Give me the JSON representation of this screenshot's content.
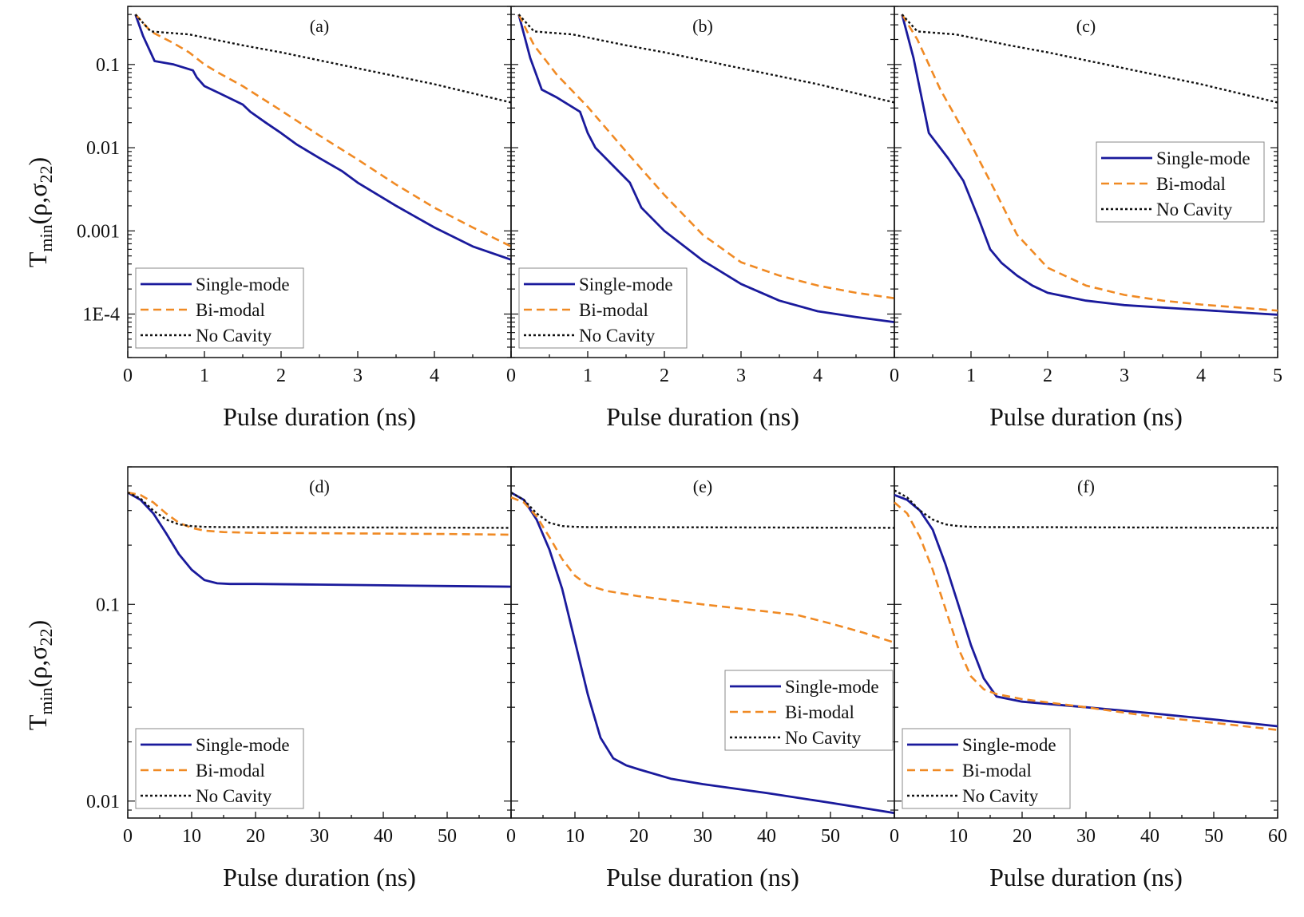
{
  "figure": {
    "ylabel_main": "T",
    "ylabel_sub": "min",
    "ylabel_args": "(ρ,σ",
    "ylabel_args_sub": "22",
    "ylabel_close": ")"
  },
  "chart_data": [
    {
      "type": "line",
      "panel": "(a)",
      "xlabel": "Pulse duration (ns)",
      "xlim": [
        0,
        5
      ],
      "ylim": [
        3e-05,
        0.5
      ],
      "yscale": "log",
      "xticks": [
        0,
        1,
        2,
        3,
        4
      ],
      "xtick_labels": [
        "0",
        "1",
        "2",
        "3",
        "4"
      ],
      "yticks": [
        0.1,
        0.01,
        0.001,
        0.0001
      ],
      "ytick_labels": [
        "0.1",
        "0.01",
        "0.001",
        "1E-4"
      ],
      "legend": [
        "Single-mode",
        "Bi-modal",
        "No Cavity"
      ],
      "legend_position": "bottom-left",
      "series": [
        {
          "name": "Single-mode",
          "color": "#1a1a9c",
          "x": [
            0.1,
            0.2,
            0.35,
            0.6,
            0.85,
            0.9,
            1.0,
            1.2,
            1.5,
            1.6,
            1.8,
            2.0,
            2.2,
            2.5,
            2.8,
            3.0,
            3.5,
            4.0,
            4.5,
            5.0
          ],
          "y": [
            0.4,
            0.22,
            0.11,
            0.1,
            0.085,
            0.07,
            0.055,
            0.045,
            0.033,
            0.027,
            0.02,
            0.015,
            0.011,
            0.0075,
            0.0052,
            0.0038,
            0.002,
            0.0011,
            0.00065,
            0.00045
          ]
        },
        {
          "name": "Bi-modal",
          "color": "#f08a24",
          "x": [
            0.1,
            0.3,
            0.6,
            0.8,
            1.0,
            1.2,
            1.5,
            2.0,
            2.5,
            3.0,
            3.5,
            4.0,
            4.5,
            5.0
          ],
          "y": [
            0.4,
            0.25,
            0.18,
            0.14,
            0.1,
            0.078,
            0.055,
            0.028,
            0.014,
            0.0072,
            0.0036,
            0.0019,
            0.0011,
            0.00065
          ]
        },
        {
          "name": "No Cavity",
          "color": "#111111",
          "x": [
            0.1,
            0.3,
            0.8,
            1.5,
            2.0,
            3.0,
            4.0,
            5.0
          ],
          "y": [
            0.4,
            0.25,
            0.23,
            0.17,
            0.14,
            0.09,
            0.058,
            0.035
          ]
        }
      ]
    },
    {
      "type": "line",
      "panel": "(b)",
      "xlabel": "Pulse duration (ns)",
      "xlim": [
        0,
        5
      ],
      "ylim": [
        3e-05,
        0.5
      ],
      "yscale": "log",
      "xticks": [
        0,
        1,
        2,
        3,
        4
      ],
      "xtick_labels": [
        "0",
        "1",
        "2",
        "3",
        "4"
      ],
      "legend": [
        "Single-mode",
        "Bi-modal",
        "No Cavity"
      ],
      "legend_position": "bottom-left",
      "series": [
        {
          "name": "Single-mode",
          "color": "#1a1a9c",
          "x": [
            0.1,
            0.25,
            0.4,
            0.6,
            0.9,
            1.0,
            1.1,
            1.3,
            1.55,
            1.7,
            2.0,
            2.5,
            3.0,
            3.5,
            4.0,
            4.5,
            5.0
          ],
          "y": [
            0.4,
            0.12,
            0.05,
            0.04,
            0.027,
            0.015,
            0.01,
            0.0065,
            0.0038,
            0.0019,
            0.001,
            0.00044,
            0.00023,
            0.000145,
            0.000108,
            9.2e-05,
            8e-05
          ]
        },
        {
          "name": "Bi-modal",
          "color": "#f08a24",
          "x": [
            0.1,
            0.3,
            0.6,
            1.0,
            1.5,
            2.0,
            2.5,
            3.0,
            3.5,
            4.0,
            4.5,
            5.0
          ],
          "y": [
            0.4,
            0.17,
            0.075,
            0.031,
            0.009,
            0.0027,
            0.0009,
            0.00042,
            0.00029,
            0.00022,
            0.00018,
            0.000155
          ]
        },
        {
          "name": "No Cavity",
          "color": "#111111",
          "x": [
            0.1,
            0.3,
            0.8,
            1.5,
            2.0,
            3.0,
            4.0,
            5.0
          ],
          "y": [
            0.4,
            0.25,
            0.23,
            0.17,
            0.14,
            0.09,
            0.058,
            0.035
          ]
        }
      ]
    },
    {
      "type": "line",
      "panel": "(c)",
      "xlabel": "Pulse duration (ns)",
      "xlim": [
        0,
        5
      ],
      "ylim": [
        3e-05,
        0.5
      ],
      "yscale": "log",
      "xticks": [
        0,
        1,
        2,
        3,
        4,
        5
      ],
      "xtick_labels": [
        "0",
        "1",
        "2",
        "3",
        "4",
        "5"
      ],
      "legend": [
        "Single-mode",
        "Bi-modal",
        "No Cavity"
      ],
      "legend_position": "middle-right",
      "series": [
        {
          "name": "Single-mode",
          "color": "#1a1a9c",
          "x": [
            0.1,
            0.25,
            0.45,
            0.7,
            0.9,
            1.1,
            1.25,
            1.4,
            1.6,
            1.8,
            2.0,
            2.5,
            3.0,
            4.0,
            5.0
          ],
          "y": [
            0.4,
            0.12,
            0.015,
            0.0075,
            0.004,
            0.0014,
            0.0006,
            0.00041,
            0.00029,
            0.00022,
            0.00018,
            0.000145,
            0.000128,
            0.000112,
            9.8e-05
          ]
        },
        {
          "name": "Bi-modal",
          "color": "#f08a24",
          "x": [
            0.1,
            0.3,
            0.6,
            1.0,
            1.3,
            1.6,
            2.0,
            2.5,
            3.0,
            3.5,
            4.0,
            5.0
          ],
          "y": [
            0.4,
            0.2,
            0.05,
            0.011,
            0.0032,
            0.0009,
            0.00036,
            0.00022,
            0.00017,
            0.000145,
            0.00013,
            0.00011
          ]
        },
        {
          "name": "No Cavity",
          "color": "#111111",
          "x": [
            0.1,
            0.3,
            0.8,
            1.5,
            2.0,
            3.0,
            4.0,
            5.0
          ],
          "y": [
            0.4,
            0.25,
            0.23,
            0.17,
            0.14,
            0.09,
            0.058,
            0.035
          ]
        }
      ]
    },
    {
      "type": "line",
      "panel": "(d)",
      "xlabel": "Pulse duration (ns)",
      "xlim": [
        0,
        60
      ],
      "ylim": [
        0.0082,
        0.5
      ],
      "yscale": "log",
      "xticks": [
        0,
        10,
        20,
        30,
        40,
        50
      ],
      "xtick_labels": [
        "0",
        "10",
        "20",
        "30",
        "40",
        "50"
      ],
      "yticks": [
        0.1,
        0.01
      ],
      "ytick_labels": [
        "0.1",
        "0.01"
      ],
      "legend": [
        "Single-mode",
        "Bi-modal",
        "No Cavity"
      ],
      "legend_position": "bottom-left",
      "series": [
        {
          "name": "Single-mode",
          "color": "#1a1a9c",
          "x": [
            0,
            2,
            4,
            6,
            8,
            10,
            12,
            14,
            16,
            20,
            30,
            40,
            50,
            60
          ],
          "y": [
            0.37,
            0.34,
            0.29,
            0.23,
            0.18,
            0.15,
            0.133,
            0.128,
            0.127,
            0.127,
            0.126,
            0.125,
            0.124,
            0.123
          ]
        },
        {
          "name": "Bi-modal",
          "color": "#f08a24",
          "x": [
            0,
            2,
            4,
            6,
            8,
            10,
            12,
            15,
            20,
            30,
            40,
            50,
            60
          ],
          "y": [
            0.37,
            0.36,
            0.33,
            0.29,
            0.26,
            0.245,
            0.237,
            0.233,
            0.231,
            0.23,
            0.229,
            0.228,
            0.226
          ]
        },
        {
          "name": "No Cavity",
          "color": "#111111",
          "x": [
            0,
            2,
            4,
            6,
            8,
            10,
            12,
            15,
            20,
            60
          ],
          "y": [
            0.37,
            0.345,
            0.3,
            0.27,
            0.255,
            0.25,
            0.248,
            0.247,
            0.247,
            0.245
          ]
        }
      ]
    },
    {
      "type": "line",
      "panel": "(e)",
      "xlabel": "Pulse duration (ns)",
      "xlim": [
        0,
        60
      ],
      "ylim": [
        0.0082,
        0.5
      ],
      "yscale": "log",
      "xticks": [
        0,
        10,
        20,
        30,
        40,
        50
      ],
      "xtick_labels": [
        "0",
        "10",
        "20",
        "30",
        "40",
        "50"
      ],
      "legend": [
        "Single-mode",
        "Bi-modal",
        "No Cavity"
      ],
      "legend_position": "bottom-right",
      "series": [
        {
          "name": "Single-mode",
          "color": "#1a1a9c",
          "x": [
            0,
            2,
            4,
            6,
            8,
            10,
            12,
            14,
            16,
            18,
            20,
            25,
            30,
            40,
            50,
            60
          ],
          "y": [
            0.37,
            0.34,
            0.27,
            0.19,
            0.12,
            0.065,
            0.035,
            0.021,
            0.0165,
            0.0152,
            0.0145,
            0.013,
            0.0122,
            0.011,
            0.0098,
            0.0087
          ]
        },
        {
          "name": "Bi-modal",
          "color": "#f08a24",
          "x": [
            0,
            2,
            4,
            6,
            8,
            10,
            12,
            15,
            20,
            30,
            40,
            45,
            50,
            55,
            60
          ],
          "y": [
            0.35,
            0.33,
            0.28,
            0.22,
            0.17,
            0.14,
            0.125,
            0.117,
            0.11,
            0.1,
            0.092,
            0.088,
            0.08,
            0.072,
            0.064
          ]
        },
        {
          "name": "No Cavity",
          "color": "#111111",
          "x": [
            0,
            2,
            4,
            6,
            8,
            10,
            12,
            15,
            20,
            60
          ],
          "y": [
            0.37,
            0.34,
            0.29,
            0.26,
            0.25,
            0.248,
            0.247,
            0.247,
            0.247,
            0.245
          ]
        }
      ]
    },
    {
      "type": "line",
      "panel": "(f)",
      "xlabel": "Pulse duration (ns)",
      "xlim": [
        0,
        60
      ],
      "ylim": [
        0.0082,
        0.5
      ],
      "yscale": "log",
      "xticks": [
        0,
        10,
        20,
        30,
        40,
        50,
        60
      ],
      "xtick_labels": [
        "0",
        "10",
        "20",
        "30",
        "40",
        "50",
        "60"
      ],
      "legend": [
        "Single-mode",
        "Bi-modal",
        "No Cavity"
      ],
      "legend_position": "bottom-left",
      "series": [
        {
          "name": "Single-mode",
          "color": "#1a1a9c",
          "x": [
            0,
            2,
            4,
            6,
            8,
            10,
            12,
            14,
            16,
            18,
            20,
            30,
            40,
            50,
            60
          ],
          "y": [
            0.36,
            0.34,
            0.3,
            0.24,
            0.16,
            0.1,
            0.062,
            0.042,
            0.034,
            0.033,
            0.032,
            0.03,
            0.028,
            0.026,
            0.024
          ]
        },
        {
          "name": "Bi-modal",
          "color": "#f08a24",
          "x": [
            0,
            2,
            4,
            6,
            8,
            10,
            12,
            14,
            16,
            18,
            20,
            30,
            40,
            50,
            60
          ],
          "y": [
            0.33,
            0.29,
            0.22,
            0.15,
            0.095,
            0.06,
            0.043,
            0.037,
            0.035,
            0.034,
            0.033,
            0.03,
            0.027,
            0.025,
            0.023
          ]
        },
        {
          "name": "No Cavity",
          "color": "#111111",
          "x": [
            0,
            2,
            4,
            6,
            8,
            10,
            12,
            15,
            20,
            60
          ],
          "y": [
            0.38,
            0.35,
            0.3,
            0.27,
            0.255,
            0.25,
            0.248,
            0.247,
            0.247,
            0.245
          ]
        }
      ]
    }
  ]
}
